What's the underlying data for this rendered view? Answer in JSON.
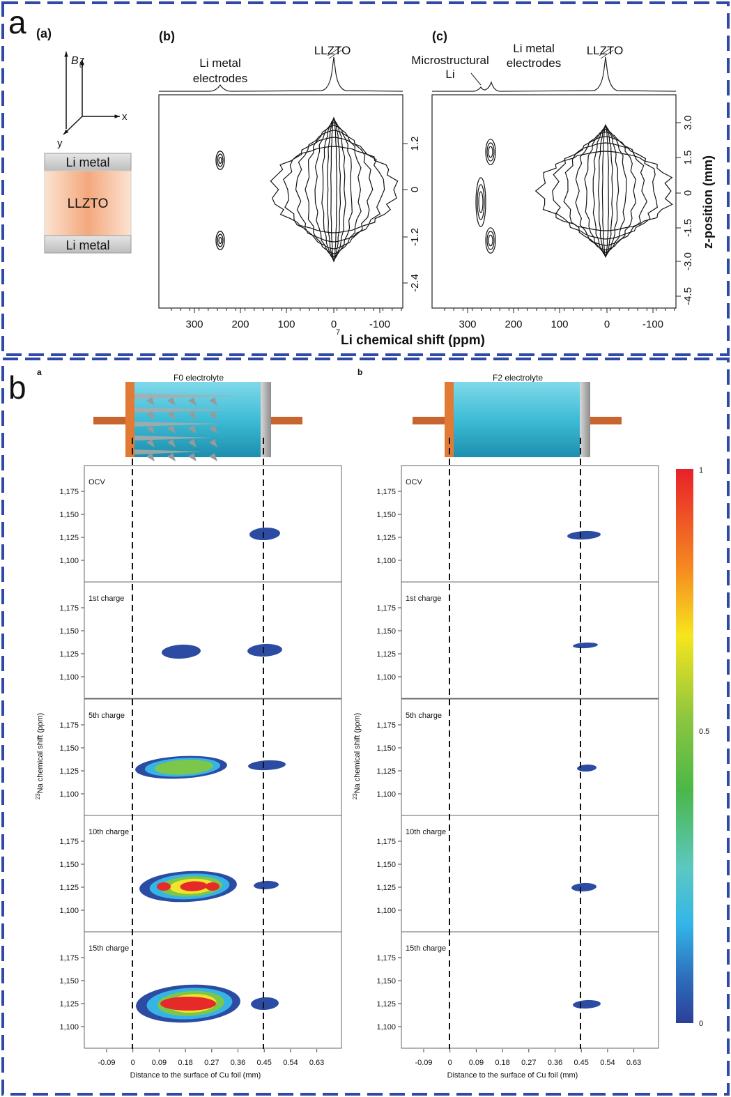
{
  "panel_a": {
    "label": "a",
    "sub_a": {
      "label": "(a)",
      "field": "B",
      "field_sub": "0",
      "axes": [
        "z",
        "x",
        "y"
      ],
      "layers": [
        "Li metal",
        "LLZTO",
        "Li metal"
      ]
    },
    "sub_b": {
      "label": "(b)",
      "peaks": {
        "li_metal": [
          "Li metal",
          "electrodes"
        ],
        "llzto": "LLZTO"
      },
      "yticks": [
        "1.2",
        "0",
        "-1.2",
        "-2.4"
      ],
      "xticks": [
        "300",
        "200",
        "100",
        "0",
        "-100"
      ]
    },
    "sub_c": {
      "label": "(c)",
      "peaks": {
        "microstructural": [
          "Microstructural",
          "Li"
        ],
        "li_metal": [
          "Li metal",
          "electrodes"
        ],
        "llzto": "LLZTO"
      },
      "yticks": [
        "3.0",
        "1.5",
        "0",
        "-1.5",
        "-3.0",
        "-4.5"
      ],
      "ylabel": "z-position (mm)",
      "xticks": [
        "300",
        "200",
        "100",
        "0",
        "-100"
      ]
    },
    "xlabel_sup": "7",
    "xlabel": "Li chemical shift (ppm)"
  },
  "panel_b": {
    "label": "b",
    "columns": [
      {
        "label": "a",
        "title": "F0 electrolyte"
      },
      {
        "label": "b",
        "title": "F2 electrolyte"
      }
    ],
    "rows": [
      "OCV",
      "1st charge",
      "5th charge",
      "10th charge",
      "15th charge"
    ],
    "yticks": [
      "1,175",
      "1,150",
      "1,125",
      "1,100"
    ],
    "ylabel_sup": "23",
    "ylabel": "Na chemical shift (ppm)",
    "xticks": [
      "-0.09",
      "0",
      "0.09",
      "0.18",
      "0.27",
      "0.36",
      "0.45",
      "0.54",
      "0.63"
    ],
    "xlabel": "Distance to the surface of Cu foil (mm)",
    "colorbar_ticks": [
      "1",
      "0.5",
      "0"
    ]
  }
}
